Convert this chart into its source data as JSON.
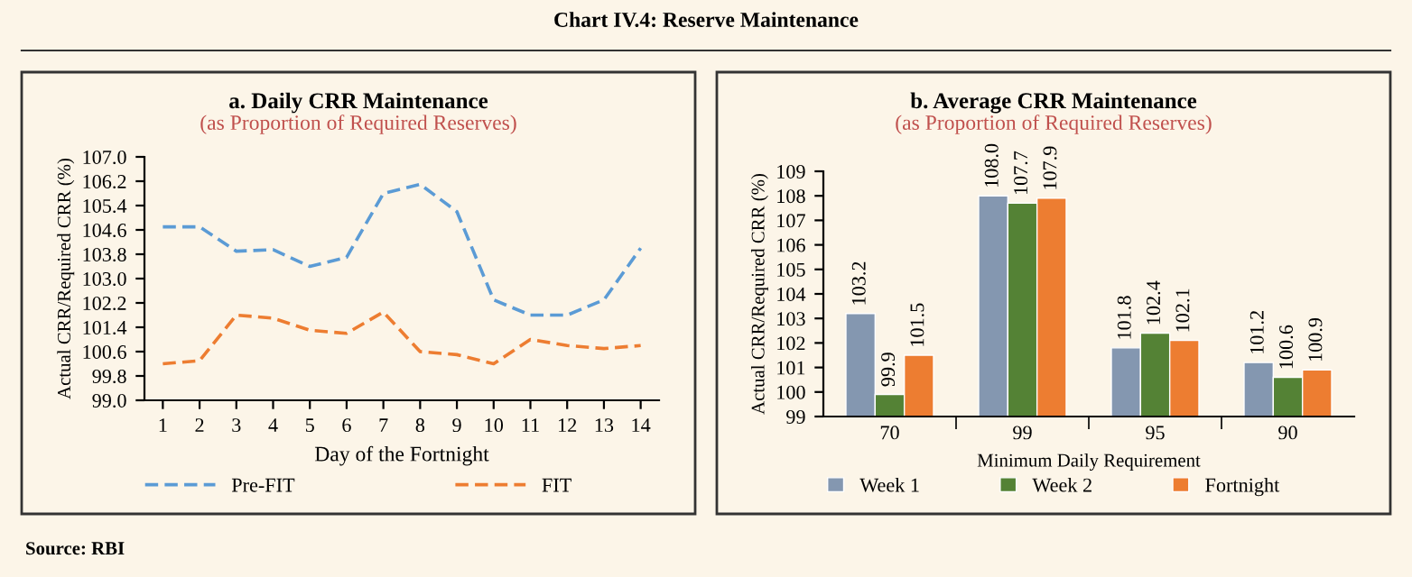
{
  "chart_data": [
    {
      "type": "line",
      "title": "a. Daily CRR Maintenance",
      "subtitle": "(as Proportion of Required Reserves)",
      "xlabel": "Day of the Fortnight",
      "ylabel": "Actual CRR/Required CRR (%)",
      "annotations": [
        "Chart IV.4: Reserve Maintenance",
        "Source: RBI"
      ],
      "x": [
        1,
        2,
        3,
        4,
        5,
        6,
        7,
        8,
        9,
        10,
        11,
        12,
        13,
        14
      ],
      "series": [
        {
          "name": "Pre-FIT",
          "color": "#5b9bd5",
          "values": [
            104.7,
            104.7,
            103.9,
            103.95,
            103.4,
            103.7,
            105.8,
            106.1,
            105.2,
            102.3,
            101.8,
            101.8,
            102.3,
            104.0
          ]
        },
        {
          "name": "FIT",
          "color": "#ed7d31",
          "values": [
            100.2,
            100.3,
            101.8,
            101.7,
            101.3,
            101.2,
            101.9,
            100.6,
            100.5,
            100.2,
            101.0,
            100.8,
            100.7,
            100.8
          ]
        }
      ],
      "line_style": "dashed",
      "marker": "none",
      "xlim": [
        0.5,
        14.5
      ],
      "xticks": [
        1,
        2,
        3,
        4,
        5,
        6,
        7,
        8,
        9,
        10,
        11,
        12,
        13,
        14
      ],
      "ylim": [
        99.0,
        107.0
      ],
      "yticks": [
        {
          "value": 99.0,
          "label": "99.0"
        },
        99.8,
        100.6,
        101.4,
        102.2,
        {
          "value": 103.0,
          "label": "103.0"
        },
        103.8,
        104.6,
        105.4,
        106.2,
        {
          "value": 107.0,
          "label": "107.0"
        }
      ],
      "grid": false,
      "legend": "bottom"
    },
    {
      "type": "bar",
      "title": "b. Average CRR Maintenance",
      "subtitle": "(as Proportion of Required Reserves)",
      "xlabel": "Minimum Daily Requirement",
      "ylabel": "Actual CRR/Required CRR (%)",
      "categories": [
        "70",
        "99",
        "95",
        "90"
      ],
      "series": [
        {
          "name": "Week 1",
          "color": "#8497b0",
          "values": [
            103.2,
            108.0,
            101.8,
            101.2
          ],
          "value_labels": [
            "103.2",
            "108.0",
            "101.8",
            "101.2"
          ]
        },
        {
          "name": "Week 2",
          "color": "#548235",
          "values": [
            99.9,
            107.7,
            102.4,
            100.6
          ],
          "value_labels": [
            "99.9",
            "107.7",
            "102.4",
            "100.6"
          ]
        },
        {
          "name": "Fortnight",
          "color": "#ed7d31",
          "values": [
            101.5,
            107.9,
            102.1,
            100.9
          ],
          "value_labels": [
            "101.5",
            "107.9",
            "102.1",
            "100.9"
          ]
        }
      ],
      "ylim": [
        99,
        109
      ],
      "yticks": [
        99,
        100,
        101,
        102,
        103,
        104,
        105,
        106,
        107,
        108,
        109
      ],
      "grid": false,
      "legend": "bottom"
    }
  ]
}
